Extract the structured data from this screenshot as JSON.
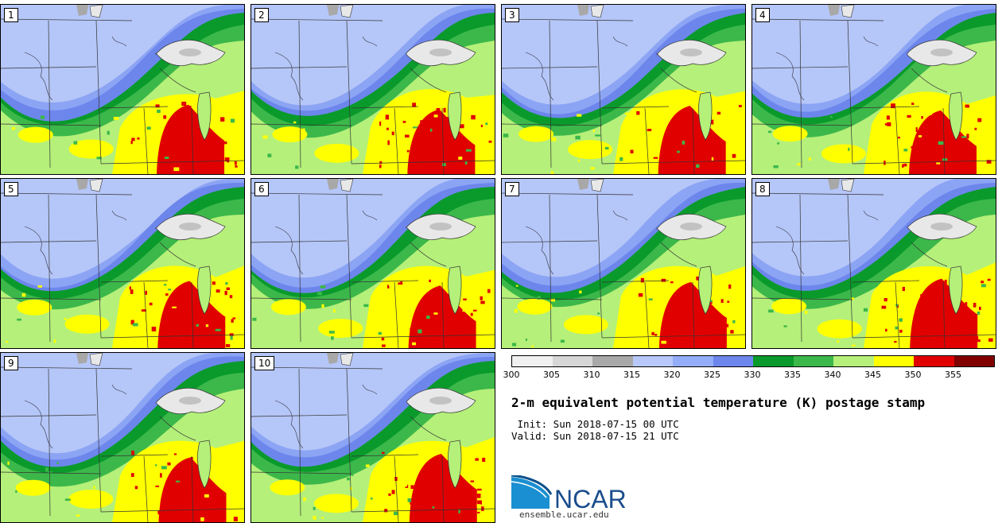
{
  "figure": {
    "title": "2-m equivalent potential temperature (K) postage stamp",
    "init": " Init: Sun 2018-07-15 00 UTC",
    "valid": "Valid: Sun 2018-07-15 21 UTC"
  },
  "members": [
    "1",
    "2",
    "3",
    "4",
    "5",
    "6",
    "7",
    "8",
    "9",
    "10"
  ],
  "colorbar": {
    "unit": "K",
    "colors": [
      "#f0f0f0",
      "#d6d6d6",
      "#a8a8a8",
      "#b8c8fb",
      "#94adf8",
      "#6d86ec",
      "#0a9a2c",
      "#3cb84a",
      "#b5f07a",
      "#ffff00",
      "#e10000",
      "#800000"
    ],
    "tick_labels": [
      "300",
      "305",
      "310",
      "315",
      "320",
      "325",
      "330",
      "335",
      "340",
      "345",
      "350",
      "355"
    ]
  },
  "logo": {
    "text": "NCAR",
    "url": "ensemble.ucar.edu"
  },
  "map_colors": {
    "blue_light": "#b5c6f8",
    "blue_mid": "#8ca4f4",
    "blue_dark": "#6d86ec",
    "green_dark": "#0a9a2c",
    "green_mid": "#3cb84a",
    "green_light": "#b5f07a",
    "yellow": "#ffff00",
    "red": "#e10000",
    "gray_light": "#e8e8e8",
    "gray_dark": "#a8a8a8"
  }
}
